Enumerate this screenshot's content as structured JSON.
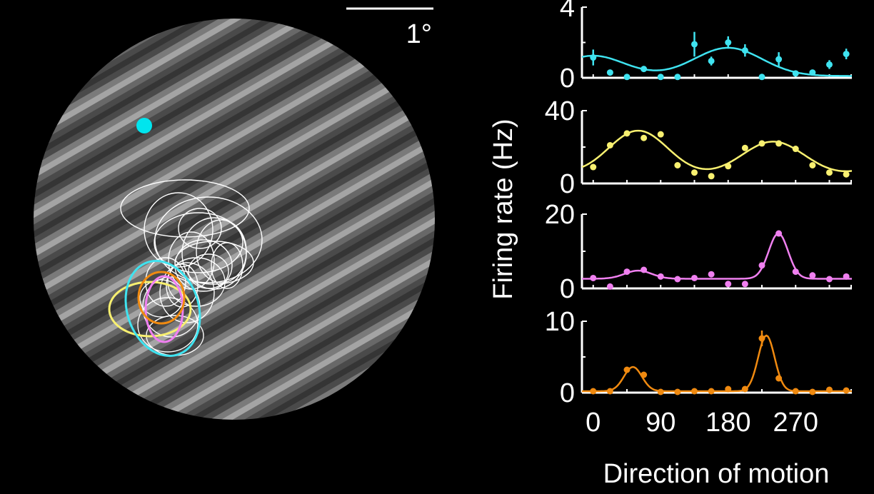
{
  "scale_bar": {
    "label": "1°"
  },
  "stimulus": {
    "fixation_color": "#00e5ee",
    "grating": "drifting-sinusoidal-grating"
  },
  "receptive_fields": {
    "colors": {
      "other": "#ffffff",
      "cyan": "#3fe3f0",
      "yellow": "#f8f070",
      "magenta": "#f080f0",
      "orange": "#f08a10"
    }
  },
  "shared_axes": {
    "ylabel": "Firing rate (Hz)",
    "xlabel": "Direction of motion",
    "xticks": [
      "0",
      "90",
      "180",
      "270"
    ]
  },
  "chart_data": [
    {
      "type": "line",
      "color": "#3fe3f0",
      "xlim": [
        -15,
        345
      ],
      "ylim": [
        0,
        4
      ],
      "yticks": [
        {
          "value": 0,
          "label": "0"
        },
        {
          "value": 4,
          "label": "4"
        }
      ],
      "points": [
        {
          "x": 0,
          "y": 1.15,
          "err": 0.45
        },
        {
          "x": 22.5,
          "y": 0.3
        },
        {
          "x": 45,
          "y": 0.05
        },
        {
          "x": 67.5,
          "y": 0.5,
          "err": 0.15
        },
        {
          "x": 90,
          "y": 0.05
        },
        {
          "x": 112.5,
          "y": 0.05
        },
        {
          "x": 135,
          "y": 1.9,
          "err": 0.7
        },
        {
          "x": 157.5,
          "y": 0.95,
          "err": 0.25
        },
        {
          "x": 180,
          "y": 2.0,
          "err": 0.35
        },
        {
          "x": 202.5,
          "y": 1.55,
          "err": 0.35
        },
        {
          "x": 225,
          "y": 0.05
        },
        {
          "x": 247.5,
          "y": 1.05,
          "err": 0.4
        },
        {
          "x": 270,
          "y": 0.25
        },
        {
          "x": 292.5,
          "y": 0.3
        },
        {
          "x": 315,
          "y": 0.75,
          "err": 0.25
        },
        {
          "x": 337.5,
          "y": 1.35,
          "err": 0.3
        }
      ],
      "fit": {
        "baseline": 0.1,
        "peaks": [
          {
            "amp": 1.6,
            "mu": 180,
            "sigma": 45
          },
          {
            "amp": 1.15,
            "mu": 0,
            "sigma": 42
          }
        ]
      }
    },
    {
      "type": "line",
      "color": "#f8f070",
      "xlim": [
        -15,
        345
      ],
      "ylim": [
        0,
        40
      ],
      "yticks": [
        {
          "value": 0,
          "label": "0"
        },
        {
          "value": 40,
          "label": "40"
        }
      ],
      "points": [
        {
          "x": 0,
          "y": 9
        },
        {
          "x": 22.5,
          "y": 21
        },
        {
          "x": 45,
          "y": 27.5
        },
        {
          "x": 67.5,
          "y": 25
        },
        {
          "x": 90,
          "y": 27
        },
        {
          "x": 112.5,
          "y": 10
        },
        {
          "x": 135,
          "y": 6
        },
        {
          "x": 157.5,
          "y": 4
        },
        {
          "x": 180,
          "y": 9.5
        },
        {
          "x": 202.5,
          "y": 19.5
        },
        {
          "x": 225,
          "y": 22
        },
        {
          "x": 247.5,
          "y": 22
        },
        {
          "x": 270,
          "y": 19
        },
        {
          "x": 292.5,
          "y": 10
        },
        {
          "x": 315,
          "y": 6
        },
        {
          "x": 337.5,
          "y": 5
        }
      ],
      "fit": {
        "baseline": 4,
        "peaks": [
          {
            "amp": 25,
            "mu": 60,
            "sigma": 40
          },
          {
            "amp": 19,
            "mu": 240,
            "sigma": 42
          },
          {
            "amp": 12,
            "mu": 420,
            "sigma": 40
          },
          {
            "amp": 16,
            "mu": -120,
            "sigma": 42
          }
        ]
      }
    },
    {
      "type": "line",
      "color": "#f080f0",
      "xlim": [
        -15,
        345
      ],
      "ylim": [
        0,
        20
      ],
      "yticks": [
        {
          "value": 0,
          "label": "0"
        },
        {
          "value": 20,
          "label": "20"
        }
      ],
      "points": [
        {
          "x": 0,
          "y": 2.8
        },
        {
          "x": 22.5,
          "y": 0.5
        },
        {
          "x": 45,
          "y": 4.5
        },
        {
          "x": 67.5,
          "y": 5
        },
        {
          "x": 90,
          "y": 3.2
        },
        {
          "x": 112.5,
          "y": 2.5
        },
        {
          "x": 135,
          "y": 2.8
        },
        {
          "x": 157.5,
          "y": 3.8
        },
        {
          "x": 180,
          "y": 1.2
        },
        {
          "x": 202.5,
          "y": 1.2
        },
        {
          "x": 225,
          "y": 6.2
        },
        {
          "x": 247.5,
          "y": 14.8
        },
        {
          "x": 270,
          "y": 4.5
        },
        {
          "x": 292.5,
          "y": 3.5
        },
        {
          "x": 315,
          "y": 2.5
        },
        {
          "x": 337.5,
          "y": 3.2
        }
      ],
      "fit": {
        "baseline": 2.6,
        "peaks": [
          {
            "amp": 2.2,
            "mu": 60,
            "sigma": 18
          },
          {
            "amp": 12.2,
            "mu": 247,
            "sigma": 13
          }
        ]
      }
    },
    {
      "type": "line",
      "color": "#f08a10",
      "xlim": [
        -15,
        345
      ],
      "ylim": [
        0,
        10
      ],
      "yticks": [
        {
          "value": 0,
          "label": "0"
        },
        {
          "value": 10,
          "label": "10"
        }
      ],
      "points": [
        {
          "x": 0,
          "y": 0.2
        },
        {
          "x": 22.5,
          "y": 0.2
        },
        {
          "x": 45,
          "y": 3.2
        },
        {
          "x": 67.5,
          "y": 2.5
        },
        {
          "x": 90,
          "y": 0.1
        },
        {
          "x": 112.5,
          "y": 0.1
        },
        {
          "x": 135,
          "y": 0.2
        },
        {
          "x": 157.5,
          "y": 0.2
        },
        {
          "x": 180,
          "y": 0.5
        },
        {
          "x": 202.5,
          "y": 0.5
        },
        {
          "x": 225,
          "y": 7.6,
          "err": 1.1
        },
        {
          "x": 247.5,
          "y": 2.0
        },
        {
          "x": 270,
          "y": 0.2
        },
        {
          "x": 292.5,
          "y": 0.1
        },
        {
          "x": 315,
          "y": 0.4
        },
        {
          "x": 337.5,
          "y": 0.3
        }
      ],
      "fit": {
        "baseline": 0.2,
        "peaks": [
          {
            "amp": 3.4,
            "mu": 53,
            "sigma": 12
          },
          {
            "amp": 7.8,
            "mu": 231,
            "sigma": 11
          }
        ]
      }
    }
  ]
}
